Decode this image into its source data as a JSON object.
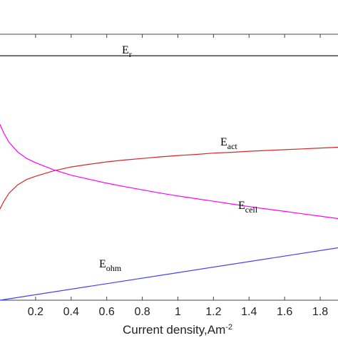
{
  "chart_data": {
    "type": "line",
    "title": "",
    "xlabel": "Current density,Am",
    "xlabel_sup": "-2",
    "ylabel": "",
    "xlim": [
      0.0,
      1.9
    ],
    "ylim": [
      0.0,
      1.0
    ],
    "x_ticks": [
      0.2,
      0.4,
      0.6,
      0.8,
      1.0,
      1.2,
      1.4,
      1.6,
      1.8
    ],
    "x_tick_labels": [
      "0.2",
      "0.4",
      "0.6",
      "0.8",
      "1",
      "1.2",
      "1.4",
      "1.6",
      "1.8"
    ],
    "grid": false,
    "series": [
      {
        "name": "E_r",
        "label_main": "E",
        "label_sub": "r",
        "color": "#000000",
        "x": [
          0.0,
          1.9
        ],
        "y": [
          0.919,
          0.919
        ]
      },
      {
        "name": "E_act",
        "label_main": "E",
        "label_sub": "act",
        "color": "#d62728",
        "x": [
          0.0,
          0.02,
          0.05,
          0.1,
          0.15,
          0.2,
          0.3,
          0.4,
          0.5,
          0.6,
          0.7,
          0.8,
          0.9,
          1.0,
          1.1,
          1.2,
          1.3,
          1.4,
          1.5,
          1.6,
          1.7,
          1.8,
          1.9
        ],
        "y": [
          0.343,
          0.37,
          0.402,
          0.434,
          0.454,
          0.466,
          0.486,
          0.501,
          0.511,
          0.52,
          0.527,
          0.533,
          0.539,
          0.544,
          0.548,
          0.553,
          0.556,
          0.56,
          0.563,
          0.566,
          0.569,
          0.572,
          0.575
        ]
      },
      {
        "name": "E_cell",
        "label_main": "E",
        "label_sub": "cell",
        "color": "#ff00ff",
        "x": [
          0.0,
          0.02,
          0.05,
          0.1,
          0.15,
          0.2,
          0.3,
          0.4,
          0.5,
          0.6,
          0.7,
          0.8,
          0.9,
          1.0,
          1.1,
          1.2,
          1.3,
          1.4,
          1.5,
          1.6,
          1.7,
          1.8,
          1.9
        ],
        "y": [
          0.661,
          0.63,
          0.594,
          0.557,
          0.533,
          0.517,
          0.491,
          0.47,
          0.455,
          0.44,
          0.427,
          0.415,
          0.403,
          0.392,
          0.382,
          0.372,
          0.362,
          0.352,
          0.343,
          0.334,
          0.325,
          0.316,
          0.307
        ]
      },
      {
        "name": "E_ohm",
        "label_main": "E",
        "label_sub": "ohm",
        "color": "#4040ff",
        "x": [
          0.0,
          1.9
        ],
        "y": [
          0.0,
          0.197
        ]
      }
    ]
  }
}
